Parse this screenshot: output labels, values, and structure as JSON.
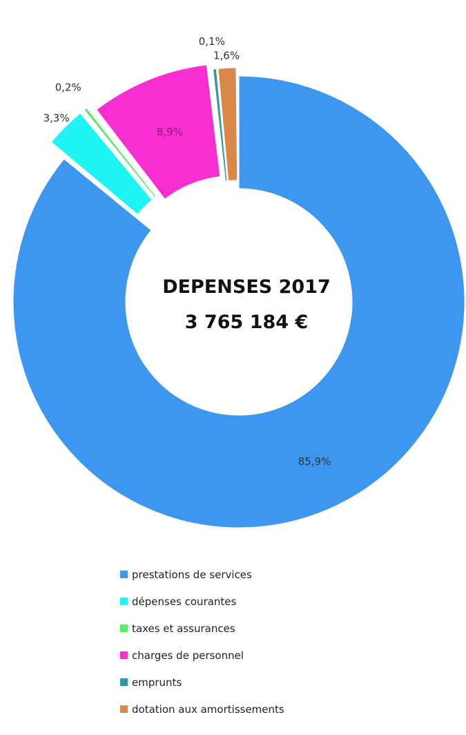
{
  "chart_data": {
    "type": "pie",
    "variant": "donut",
    "center_text": [
      "DEPENSES  2017",
      "3 765 184 €"
    ],
    "categories": [
      "prestations de services",
      "dépenses courantes",
      "taxes et assurances",
      "charges de personnel",
      "emprunts",
      "dotation aux amortissements"
    ],
    "values": [
      85.9,
      3.3,
      0.2,
      8.9,
      0.1,
      1.6
    ],
    "labels": [
      "85,9%",
      "3,3%",
      "0,2%",
      "8,9%",
      "0,1%",
      "1,6%"
    ],
    "colors": [
      "#3d97f1",
      "#1ef4f2",
      "#5fe86a",
      "#f72ed0",
      "#32999b",
      "#d9884a"
    ],
    "exploded": [
      false,
      true,
      true,
      true,
      true,
      true
    ],
    "legend_position": "bottom"
  }
}
